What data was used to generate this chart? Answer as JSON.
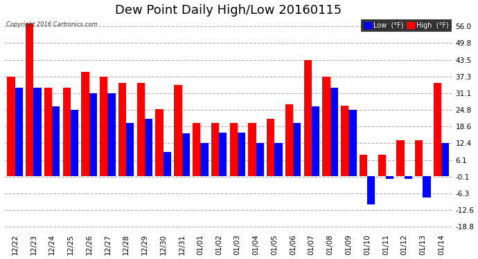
{
  "title": "Dew Point Daily High/Low 20160115",
  "copyright": "Copyright 2016 Cartronics.com",
  "categories": [
    "12/22",
    "12/23",
    "12/24",
    "12/25",
    "12/26",
    "12/27",
    "12/28",
    "12/29",
    "12/30",
    "12/31",
    "01/01",
    "01/02",
    "01/03",
    "01/04",
    "01/05",
    "01/06",
    "01/07",
    "01/08",
    "01/09",
    "01/10",
    "01/11",
    "01/12",
    "01/13",
    "01/14"
  ],
  "high_values": [
    37.3,
    57.0,
    33.0,
    33.0,
    39.0,
    37.3,
    35.0,
    35.0,
    25.0,
    34.0,
    20.0,
    20.0,
    19.8,
    19.8,
    21.5,
    27.0,
    43.5,
    37.3,
    26.5,
    8.0,
    8.0,
    13.5,
    13.5,
    35.0
  ],
  "low_values": [
    33.0,
    33.0,
    26.0,
    24.8,
    31.0,
    31.0,
    19.8,
    21.5,
    9.0,
    16.0,
    12.4,
    16.4,
    16.4,
    12.4,
    12.4,
    19.8,
    26.0,
    33.0,
    24.8,
    -10.5,
    -1.0,
    -1.0,
    -8.0,
    12.4
  ],
  "high_color": "#ff0000",
  "low_color": "#0000ff",
  "bg_color": "#ffffff",
  "plot_bg_color": "#ffffff",
  "grid_color": "#b0b0b0",
  "ytick_labels": [
    "-18.8",
    "-12.6",
    "-6.3",
    "-0.1",
    "6.1",
    "12.4",
    "18.6",
    "24.8",
    "31.1",
    "37.3",
    "43.5",
    "49.8",
    "56.0"
  ],
  "ytick_values": [
    -18.8,
    -12.6,
    -6.3,
    -0.1,
    6.1,
    12.4,
    18.6,
    24.8,
    31.1,
    37.3,
    43.5,
    49.8,
    56.0
  ],
  "ylim": [
    -21.0,
    59.0
  ],
  "title_fontsize": 13,
  "tick_fontsize": 7.5,
  "legend_low_label": "Low  (°F)",
  "legend_high_label": "High  (°F)",
  "bar_width": 0.42,
  "figsize": [
    6.9,
    3.75
  ]
}
